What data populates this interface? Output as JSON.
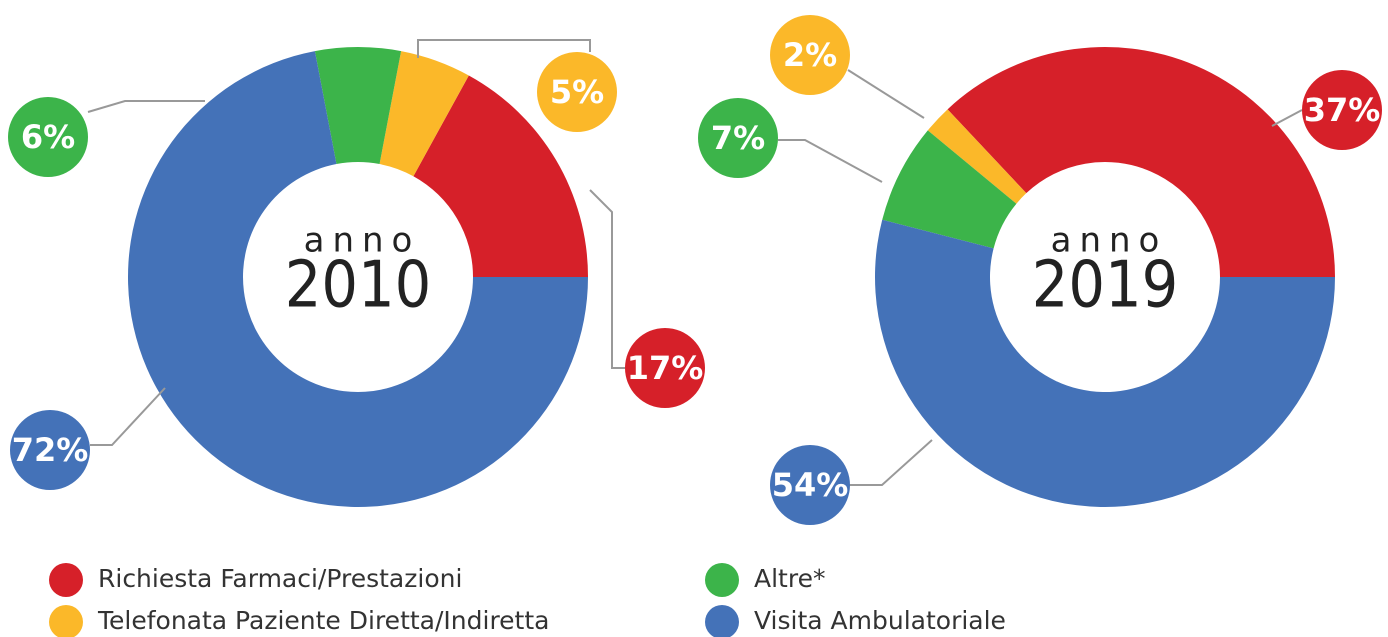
{
  "chart_data": [
    {
      "type": "pie",
      "center_label": "anno",
      "year": "2010",
      "values": [
        17,
        5,
        6,
        72
      ],
      "value_labels": [
        "17%",
        "5%",
        "6%",
        "72%"
      ]
    },
    {
      "type": "pie",
      "center_label": "anno",
      "year": "2019",
      "values": [
        37,
        2,
        7,
        54
      ],
      "value_labels": [
        "37%",
        "2%",
        "7%",
        "54%"
      ]
    }
  ],
  "legend": {
    "categories": [
      "Richiesta Farmaci/Prestazioni",
      "Telefonata Paziente Diretta/Indiretta",
      "Altre*",
      "Visita Ambulatoriale"
    ],
    "colors": [
      "#d62029",
      "#fbb829",
      "#3cb44a",
      "#4472b8"
    ]
  }
}
